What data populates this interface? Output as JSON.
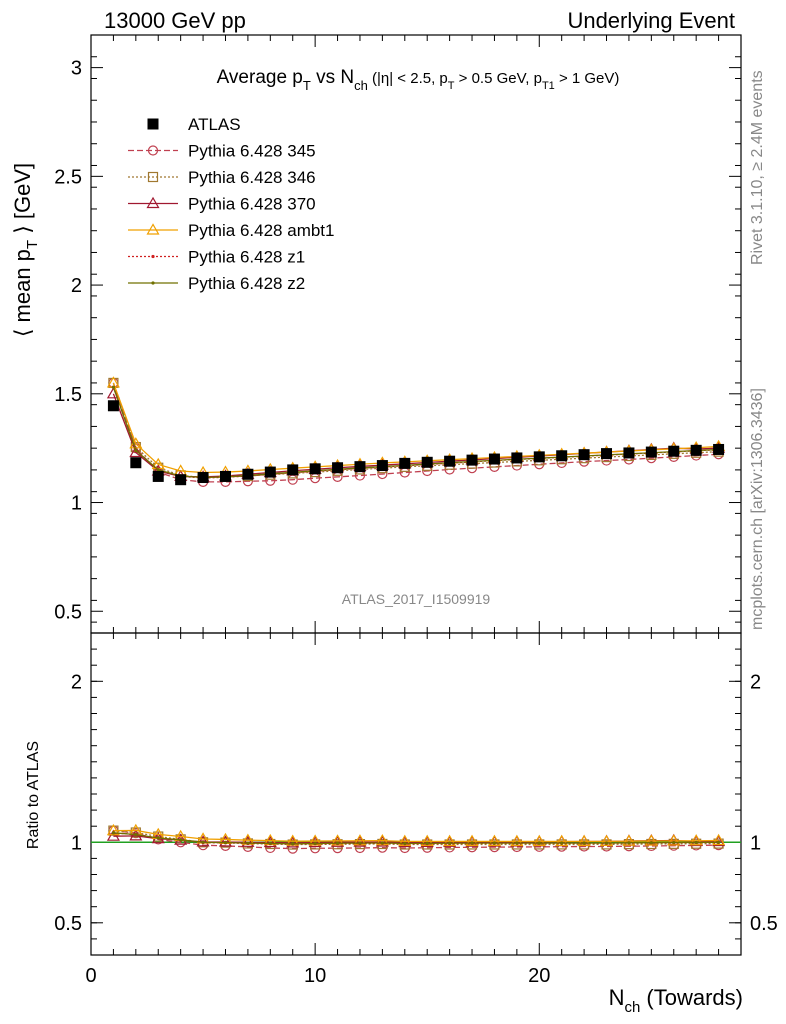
{
  "header": {
    "left": "13000 GeV pp",
    "right": "Underlying Event"
  },
  "chart_title": {
    "part1": "Average p",
    "sub_T": "T",
    "part2": " vs N",
    "sub_ch": "ch",
    "cut1": " (|η| < 2.5, p",
    "cut_T": "T",
    "cut2": " > 0.5 GeV, p",
    "cut_T1": "T1",
    "cut3": " > 1 GeV)"
  },
  "side_labels": {
    "rivet": "Rivet 3.1.10, ≥ 2.4M events",
    "mcplots": "mcplots.cern.ch [arXiv:1306.3436]"
  },
  "watermark": "ATLAS_2017_I1509919",
  "ylabel_main": {
    "open": "⟨ mean p",
    "sub": "T",
    "close": " ⟩ [GeV]"
  },
  "ylabel_ratio": "Ratio to ATLAS",
  "xlabel": {
    "main": "N",
    "sub": "ch",
    "rest": " (Towards)"
  },
  "main_ticks": [
    "0.5",
    "1",
    "1.5",
    "2",
    "2.5",
    "3"
  ],
  "ratio_ticks": [
    "0.5",
    "1",
    "2"
  ],
  "x_ticks": [
    "0",
    "10",
    "20"
  ],
  "chart_data": {
    "type": "line",
    "title": "Average pT vs Nch (|η| < 2.5, pT > 0.5 GeV, pT1 > 1 GeV)",
    "xlabel": "Nch (Towards)",
    "ylabel": "⟨ mean pT ⟩ [GeV]",
    "xlim": [
      0,
      29
    ],
    "ylim": [
      0.4,
      3.15
    ],
    "ratio_ylim": [
      0.3,
      2.3
    ],
    "x": [
      1,
      2,
      3,
      4,
      5,
      6,
      7,
      8,
      9,
      10,
      11,
      12,
      13,
      14,
      15,
      16,
      17,
      18,
      19,
      20,
      21,
      22,
      23,
      24,
      25,
      26,
      27,
      28
    ],
    "reference": {
      "name": "ATLAS",
      "color": "#000000",
      "values": [
        1.445,
        1.183,
        1.12,
        1.105,
        1.115,
        1.12,
        1.13,
        1.14,
        1.15,
        1.155,
        1.16,
        1.165,
        1.17,
        1.18,
        1.185,
        1.19,
        1.195,
        1.2,
        1.205,
        1.21,
        1.215,
        1.22,
        1.225,
        1.228,
        1.232,
        1.236,
        1.24,
        1.244
      ]
    },
    "series": [
      {
        "name": "Pythia 6.428 345",
        "color": "#c04050",
        "dash": "6,3",
        "marker": "circle",
        "values": [
          1.55,
          1.25,
          1.14,
          1.105,
          1.095,
          1.095,
          1.098,
          1.1,
          1.105,
          1.112,
          1.118,
          1.124,
          1.131,
          1.138,
          1.145,
          1.152,
          1.158,
          1.164,
          1.17,
          1.176,
          1.182,
          1.188,
          1.193,
          1.198,
          1.204,
          1.21,
          1.216,
          1.222
        ]
      },
      {
        "name": "Pythia 6.428 346",
        "color": "#a07830",
        "dash": "2,2",
        "marker": "square",
        "values": [
          1.55,
          1.255,
          1.16,
          1.125,
          1.115,
          1.118,
          1.122,
          1.128,
          1.134,
          1.14,
          1.146,
          1.152,
          1.158,
          1.164,
          1.169,
          1.174,
          1.179,
          1.184,
          1.189,
          1.194,
          1.199,
          1.204,
          1.209,
          1.214,
          1.219,
          1.224,
          1.229,
          1.234
        ]
      },
      {
        "name": "Pythia 6.428 370",
        "color": "#a01830",
        "dash": "",
        "marker": "triangle",
        "values": [
          1.5,
          1.23,
          1.145,
          1.12,
          1.118,
          1.122,
          1.13,
          1.138,
          1.146,
          1.153,
          1.16,
          1.166,
          1.172,
          1.178,
          1.184,
          1.19,
          1.196,
          1.202,
          1.208,
          1.214,
          1.22,
          1.226,
          1.232,
          1.238,
          1.244,
          1.25,
          1.246,
          1.25
        ]
      },
      {
        "name": "Pythia 6.428 ambt1",
        "color": "#f0a000",
        "dash": "",
        "marker": "triangle",
        "values": [
          1.55,
          1.27,
          1.175,
          1.145,
          1.138,
          1.14,
          1.145,
          1.152,
          1.158,
          1.164,
          1.17,
          1.176,
          1.182,
          1.187,
          1.192,
          1.197,
          1.202,
          1.207,
          1.212,
          1.217,
          1.222,
          1.227,
          1.232,
          1.237,
          1.242,
          1.247,
          1.252,
          1.258
        ]
      },
      {
        "name": "Pythia 6.428 z1",
        "color": "#d02020",
        "dash": "2,2",
        "marker": "dot",
        "values": [
          1.53,
          1.24,
          1.15,
          1.12,
          1.113,
          1.116,
          1.122,
          1.13,
          1.137,
          1.144,
          1.151,
          1.157,
          1.163,
          1.169,
          1.175,
          1.181,
          1.187,
          1.193,
          1.198,
          1.203,
          1.208,
          1.213,
          1.218,
          1.223,
          1.228,
          1.233,
          1.238,
          1.243
        ]
      },
      {
        "name": "Pythia 6.428 z2",
        "color": "#707000",
        "dash": "",
        "marker": "dot",
        "values": [
          1.53,
          1.24,
          1.15,
          1.122,
          1.115,
          1.118,
          1.124,
          1.132,
          1.139,
          1.146,
          1.153,
          1.159,
          1.165,
          1.171,
          1.177,
          1.183,
          1.189,
          1.194,
          1.199,
          1.204,
          1.209,
          1.214,
          1.219,
          1.224,
          1.229,
          1.234,
          1.239,
          1.244
        ]
      }
    ]
  }
}
